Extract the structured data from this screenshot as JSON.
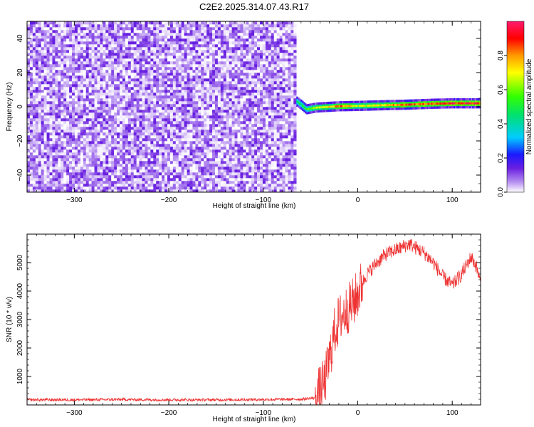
{
  "figure": {
    "title": "C2E2.2025.314.07.43.R17"
  },
  "chart_data": [
    {
      "type": "heatmap",
      "title": "C2E2.2025.314.07.43.R17",
      "xlabel": "Height of straight line (km)",
      "ylabel": "Frequency (Hz)",
      "xlim": [
        -350,
        130
      ],
      "ylim": [
        -50,
        50
      ],
      "xticks": [
        -300,
        -200,
        -100,
        0,
        100
      ],
      "yticks": [
        -40,
        -20,
        0,
        20,
        40
      ],
      "colorbar": {
        "label": "Normalized spectral amplitude",
        "range": [
          0,
          1
        ],
        "ticks": [
          0.0,
          0.2,
          0.4,
          0.6,
          0.8
        ],
        "colormap": [
          "#ffffff",
          "#b58ef0",
          "#6a1fe0",
          "#1a1aff",
          "#00ccff",
          "#00e070",
          "#33ff00",
          "#ffff00",
          "#ff9900",
          "#ff0000",
          "#ff1a6e"
        ]
      },
      "noise_region": {
        "x_range": [
          -350,
          -65
        ],
        "frequency_range": [
          -50,
          50
        ],
        "amplitude_range": [
          0.0,
          0.15
        ]
      },
      "signal_band": {
        "description": "narrow band near 0 Hz",
        "points": [
          {
            "x": -65,
            "freq": 3.0,
            "amplitude": 0.45
          },
          {
            "x": -60,
            "freq": 1.0,
            "amplitude": 0.5
          },
          {
            "x": -55,
            "freq": -1.5,
            "amplitude": 0.55
          },
          {
            "x": -45,
            "freq": -0.5,
            "amplitude": 0.7
          },
          {
            "x": -30,
            "freq": 0.0,
            "amplitude": 0.75
          },
          {
            "x": -20,
            "freq": 0.3,
            "amplitude": 0.9
          },
          {
            "x": 0,
            "freq": 0.5,
            "amplitude": 0.7
          },
          {
            "x": 20,
            "freq": 0.8,
            "amplitude": 0.75
          },
          {
            "x": 50,
            "freq": 1.2,
            "amplitude": 0.9
          },
          {
            "x": 80,
            "freq": 1.8,
            "amplitude": 0.9
          },
          {
            "x": 100,
            "freq": 2.0,
            "amplitude": 0.95
          },
          {
            "x": 130,
            "freq": 2.0,
            "amplitude": 0.95
          }
        ]
      }
    },
    {
      "type": "line",
      "xlabel": "Height of straight line (km)",
      "ylabel": "SNR (10 * v/v)",
      "xlim": [
        -350,
        130
      ],
      "ylim": [
        0,
        6000
      ],
      "xticks": [
        -300,
        -200,
        -100,
        0,
        100
      ],
      "yticks": [
        1000,
        2000,
        3000,
        4000,
        5000
      ],
      "line_color": "#ee3333",
      "series": [
        {
          "x": [
            -350,
            -300,
            -250,
            -200,
            -150,
            -100,
            -60,
            -45,
            -40,
            -35,
            -30,
            -25,
            -20,
            -15,
            -10,
            -5,
            0,
            5,
            10,
            20,
            30,
            40,
            45,
            50,
            55,
            60,
            70,
            80,
            90,
            100,
            110,
            120,
            125,
            130
          ],
          "y": [
            180,
            180,
            190,
            180,
            180,
            190,
            200,
            250,
            500,
            800,
            1600,
            2500,
            3000,
            3200,
            3400,
            3600,
            3900,
            4300,
            4600,
            5000,
            5300,
            5450,
            5500,
            5600,
            5650,
            5550,
            5350,
            5000,
            4500,
            4200,
            4600,
            5200,
            4900,
            4300
          ]
        }
      ]
    }
  ]
}
